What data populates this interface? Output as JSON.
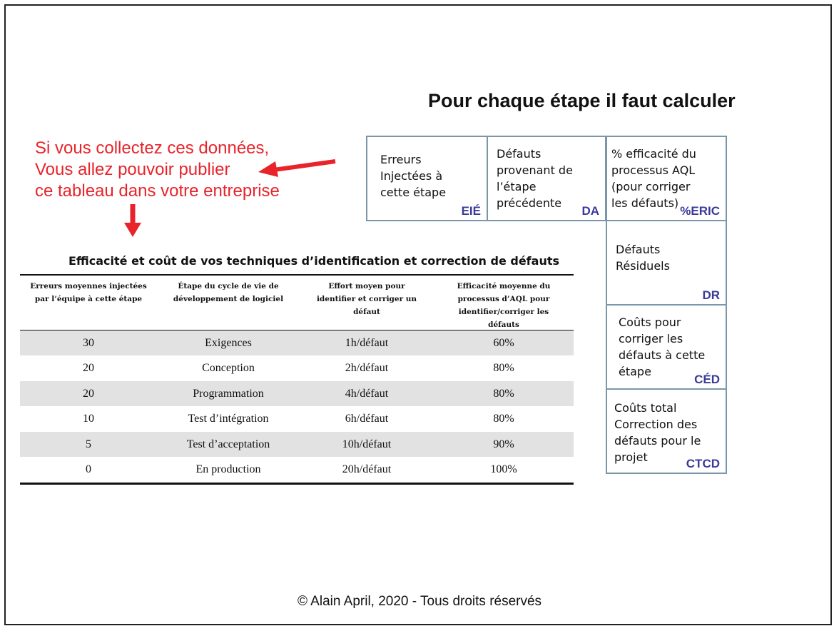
{
  "title": "Pour chaque étape il faut calculer",
  "callout": {
    "lines": [
      "Si vous collectez ces données,",
      "Vous allez pouvoir publier",
      "ce tableau dans votre entreprise"
    ],
    "color": "#e8242a"
  },
  "boxes": {
    "eie": {
      "lines": [
        "Erreurs",
        "Injectées à",
        "cette étape"
      ],
      "abbr": "EIÉ"
    },
    "da": {
      "lines": [
        "Défauts",
        "provenant de",
        "l’étape",
        "précédente"
      ],
      "abbr": "DA"
    },
    "eric": {
      "lines": [
        "% efficacité du",
        "processus AQL",
        "(pour corriger",
        "les défauts)"
      ],
      "abbr": "%ERIC"
    },
    "dr": {
      "lines": [
        "Défauts",
        "Résiduels"
      ],
      "abbr": "DR"
    },
    "ced": {
      "lines": [
        "Coûts pour",
        "corriger les",
        "défauts à cette",
        "étape"
      ],
      "abbr": "CÉD"
    },
    "ctcd": {
      "lines": [
        "Coûts total",
        "Correction des",
        "défauts pour le",
        "projet"
      ],
      "abbr": "CTCD"
    }
  },
  "table": {
    "title": "Efficacité et coût de vos techniques d’identification et correction de défauts",
    "headers": [
      [
        "Erreurs moyennes injectées",
        "par l’équipe à cette étape"
      ],
      [
        "Étape du cycle de vie de",
        "développement de logiciel"
      ],
      [
        "Effort moyen pour",
        "identifier et corriger un",
        "défaut"
      ],
      [
        "Efficacité moyenne du",
        "processus d’AQL pour",
        "identifier/corriger les",
        "défauts"
      ]
    ],
    "rows": [
      [
        "30",
        "Exigences",
        "1h/défaut",
        "60%"
      ],
      [
        "20",
        "Conception",
        "2h/défaut",
        "80%"
      ],
      [
        "20",
        "Programmation",
        "4h/défaut",
        "80%"
      ],
      [
        "10",
        "Test d’intégration",
        "6h/défaut",
        "80%"
      ],
      [
        "5",
        "Test d’acceptation",
        "10h/défaut",
        "90%"
      ],
      [
        "0",
        "En production",
        "20h/défaut",
        "100%"
      ]
    ]
  },
  "footer": "© Alain April, 2020 - Tous droits réservés",
  "colors": {
    "box_border": "#7a96a8",
    "abbr": "#3a3a9a",
    "row_shade": "#e2e2e2"
  }
}
